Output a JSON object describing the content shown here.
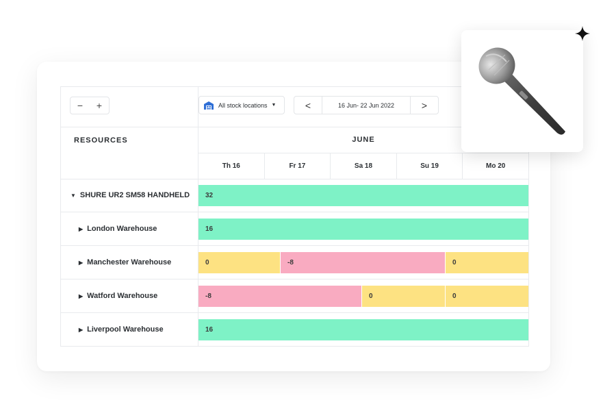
{
  "toolbar": {
    "zoom_out": "−",
    "zoom_in": "+",
    "stock_location": "All stock locations",
    "date_range": "16 Jun- 22 Jun 2022",
    "prev": "<",
    "next": ">"
  },
  "table": {
    "resources_header": "RESOURCES",
    "month": "JUNE",
    "days": [
      "Th 16",
      "Fr 17",
      "Sa 18",
      "Su 19",
      "Mo 20"
    ],
    "rows": [
      {
        "name": "SHURE UR2 SM58 HANDHELD",
        "expanded": true,
        "segments": [
          {
            "value": "32",
            "status": "available",
            "span": [
              0,
              5
            ]
          }
        ]
      },
      {
        "name": "London Warehouse",
        "expanded": false,
        "segments": [
          {
            "value": "16",
            "status": "available",
            "span": [
              0,
              5
            ]
          }
        ]
      },
      {
        "name": "Manchester Warehouse",
        "expanded": false,
        "segments": [
          {
            "value": "0",
            "status": "empty",
            "span": [
              0,
              1.25
            ]
          },
          {
            "value": "-8",
            "status": "shortage",
            "span": [
              1.25,
              3.75
            ]
          },
          {
            "value": "0",
            "status": "empty",
            "span": [
              3.75,
              5
            ]
          }
        ]
      },
      {
        "name": "Watford Warehouse",
        "expanded": false,
        "segments": [
          {
            "value": "-8",
            "status": "shortage",
            "span": [
              0,
              2.5
            ]
          },
          {
            "value": "0",
            "status": "empty",
            "span": [
              2.5,
              3.75
            ]
          },
          {
            "value": "0",
            "status": "empty",
            "span": [
              3.75,
              5
            ]
          }
        ]
      },
      {
        "name": "Liverpool Warehouse",
        "expanded": false,
        "segments": [
          {
            "value": "16",
            "status": "available",
            "span": [
              0,
              5
            ]
          }
        ]
      }
    ]
  },
  "colors": {
    "available": "#7ef2c6",
    "empty": "#fde282",
    "shortage": "#f9abc1"
  },
  "icons": {
    "stock": "warehouse-icon",
    "product": "microphone-icon",
    "decoration": "sparkle-icon"
  }
}
